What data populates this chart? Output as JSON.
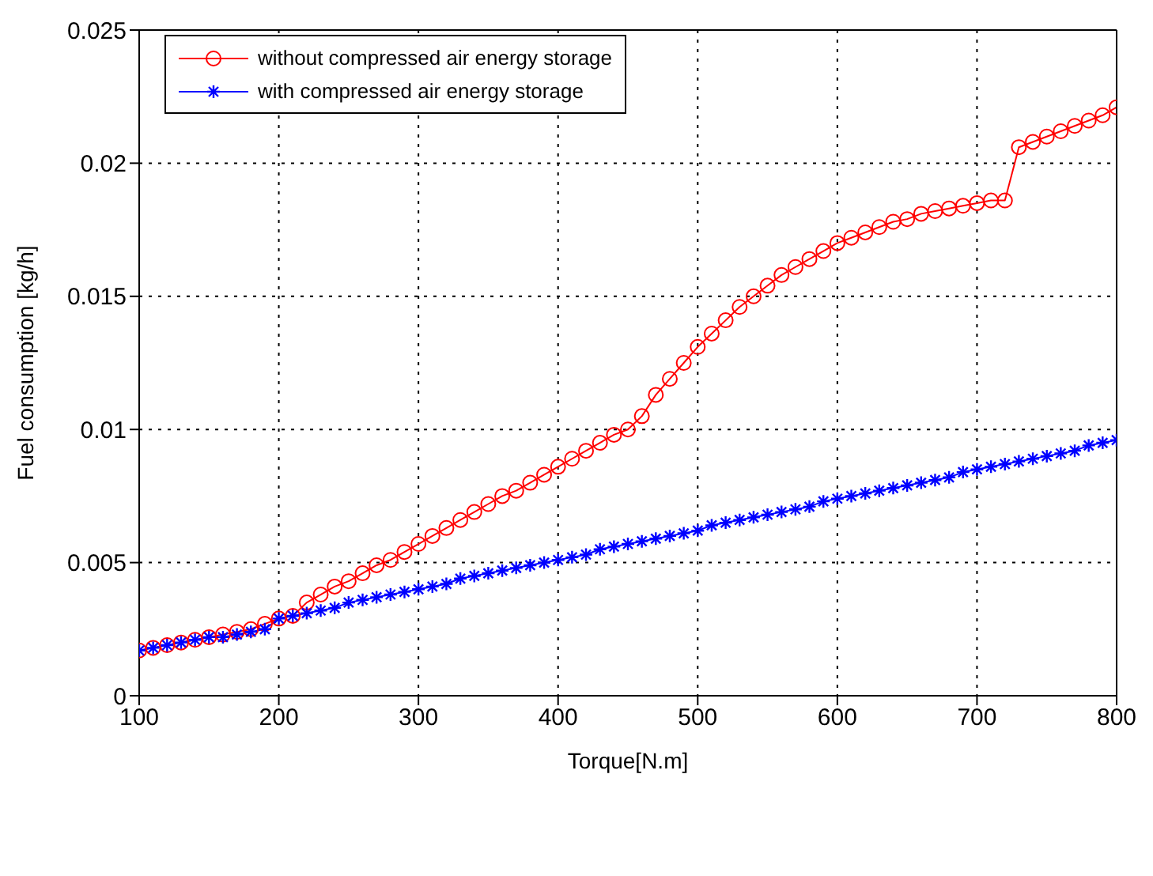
{
  "chart_data": {
    "type": "line",
    "xlabel": "Torque[N.m]",
    "ylabel": "Fuel consumption [kg/h]",
    "x": [
      100,
      110,
      120,
      130,
      140,
      150,
      160,
      170,
      180,
      190,
      200,
      210,
      220,
      230,
      240,
      250,
      260,
      270,
      280,
      290,
      300,
      310,
      320,
      330,
      340,
      350,
      360,
      370,
      380,
      390,
      400,
      410,
      420,
      430,
      440,
      450,
      460,
      470,
      480,
      490,
      500,
      510,
      520,
      530,
      540,
      550,
      560,
      570,
      580,
      590,
      600,
      610,
      620,
      630,
      640,
      650,
      660,
      670,
      680,
      690,
      700,
      710,
      720,
      730,
      740,
      750,
      760,
      770,
      780,
      790,
      800
    ],
    "series": [
      {
        "name": "without compressed air energy storage",
        "color": "#ff0000",
        "marker": "circle",
        "values": [
          0.0017,
          0.0018,
          0.0019,
          0.002,
          0.0021,
          0.0022,
          0.0023,
          0.0024,
          0.0025,
          0.0027,
          0.0029,
          0.003,
          0.0035,
          0.0038,
          0.0041,
          0.0043,
          0.0046,
          0.0049,
          0.0051,
          0.0054,
          0.0057,
          0.006,
          0.0063,
          0.0066,
          0.0069,
          0.0072,
          0.0075,
          0.0077,
          0.008,
          0.0083,
          0.0086,
          0.0089,
          0.0092,
          0.0095,
          0.0098,
          0.01,
          0.0105,
          0.0113,
          0.0119,
          0.0125,
          0.0131,
          0.0136,
          0.0141,
          0.0146,
          0.015,
          0.0154,
          0.0158,
          0.0161,
          0.0164,
          0.0167,
          0.017,
          0.0172,
          0.0174,
          0.0176,
          0.0178,
          0.0179,
          0.0181,
          0.0182,
          0.0183,
          0.0184,
          0.0185,
          0.0186,
          0.0186,
          0.0206,
          0.0208,
          0.021,
          0.0212,
          0.0214,
          0.0216,
          0.0218,
          0.0221
        ]
      },
      {
        "name": "with compressed air energy storage",
        "color": "#0000ff",
        "marker": "cross",
        "values": [
          0.0017,
          0.0018,
          0.0019,
          0.002,
          0.0021,
          0.0022,
          0.0022,
          0.0023,
          0.0024,
          0.0025,
          0.0029,
          0.003,
          0.0031,
          0.0032,
          0.0033,
          0.0035,
          0.0036,
          0.0037,
          0.0038,
          0.0039,
          0.004,
          0.0041,
          0.0042,
          0.0044,
          0.0045,
          0.0046,
          0.0047,
          0.0048,
          0.0049,
          0.005,
          0.0051,
          0.0052,
          0.0053,
          0.0055,
          0.0056,
          0.0057,
          0.0058,
          0.0059,
          0.006,
          0.0061,
          0.0062,
          0.0064,
          0.0065,
          0.0066,
          0.0067,
          0.0068,
          0.0069,
          0.007,
          0.0071,
          0.0073,
          0.0074,
          0.0075,
          0.0076,
          0.0077,
          0.0078,
          0.0079,
          0.008,
          0.0081,
          0.0082,
          0.0084,
          0.0085,
          0.0086,
          0.0087,
          0.0088,
          0.0089,
          0.009,
          0.0091,
          0.0092,
          0.0094,
          0.0095,
          0.0096
        ]
      }
    ],
    "xlim": [
      100,
      800
    ],
    "xticks": [
      100,
      200,
      300,
      400,
      500,
      600,
      700,
      800
    ],
    "ylim": [
      0,
      0.025
    ],
    "yticks": [
      0,
      0.005,
      0.01,
      0.015,
      0.02,
      0.025
    ],
    "grid": true,
    "legend": "top left",
    "line_style": "solid"
  }
}
